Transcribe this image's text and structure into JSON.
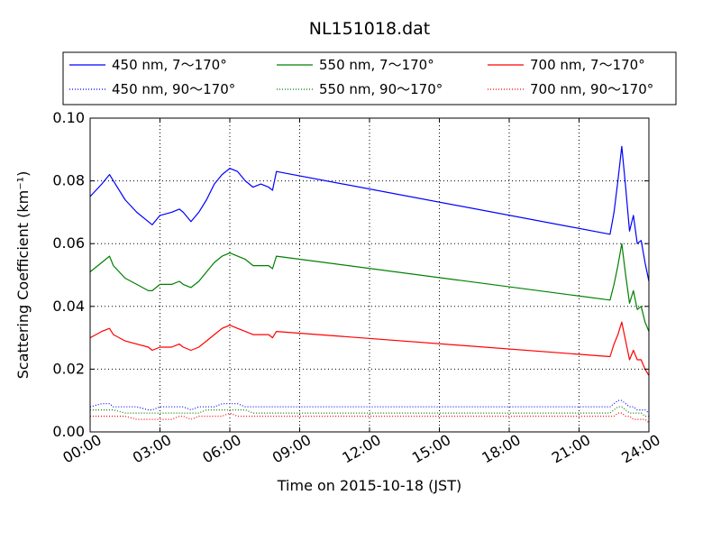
{
  "chart_data": {
    "type": "line",
    "title": "NL151018.dat",
    "xlabel": "Time on 2015-10-18 (JST)",
    "ylabel": "Scattering Coefficient (km⁻¹)",
    "xlim": [
      "00:00",
      "24:00"
    ],
    "ylim": [
      0.0,
      0.1
    ],
    "xticks": [
      "00:00",
      "03:00",
      "06:00",
      "09:00",
      "12:00",
      "15:00",
      "18:00",
      "21:00",
      "24:00"
    ],
    "yticks": [
      "0.00",
      "0.02",
      "0.04",
      "0.06",
      "0.08",
      "0.10"
    ],
    "grid": true,
    "legend": "top, above plot, 3 columns",
    "x": [
      "00:00",
      "00:30",
      "00:50",
      "01:00",
      "01:30",
      "02:00",
      "02:30",
      "02:40",
      "03:00",
      "03:30",
      "03:50",
      "04:00",
      "04:20",
      "04:40",
      "05:00",
      "05:20",
      "05:40",
      "06:00",
      "06:20",
      "06:40",
      "07:00",
      "07:20",
      "07:40",
      "07:50",
      "08:00",
      "22:20",
      "22:30",
      "22:40",
      "22:50",
      "23:00",
      "23:10",
      "23:20",
      "23:30",
      "23:40",
      "23:50",
      "24:00"
    ],
    "series": [
      {
        "name": "450 nm, 7～170°",
        "color": "#0000ff",
        "style": "solid",
        "values": [
          0.075,
          0.079,
          0.082,
          0.08,
          0.074,
          0.07,
          0.067,
          0.066,
          0.069,
          0.07,
          0.071,
          0.07,
          0.067,
          0.07,
          0.074,
          0.079,
          0.082,
          0.084,
          0.083,
          0.08,
          0.078,
          0.079,
          0.078,
          0.077,
          0.083,
          0.063,
          0.07,
          0.08,
          0.091,
          0.078,
          0.064,
          0.069,
          0.06,
          0.061,
          0.054,
          0.048
        ]
      },
      {
        "name": "550 nm, 7～170°",
        "color": "#008000",
        "style": "solid",
        "values": [
          0.051,
          0.054,
          0.056,
          0.053,
          0.049,
          0.047,
          0.045,
          0.045,
          0.047,
          0.047,
          0.048,
          0.047,
          0.046,
          0.048,
          0.051,
          0.054,
          0.056,
          0.057,
          0.056,
          0.055,
          0.053,
          0.053,
          0.053,
          0.052,
          0.056,
          0.042,
          0.047,
          0.053,
          0.06,
          0.05,
          0.041,
          0.045,
          0.039,
          0.04,
          0.035,
          0.032
        ]
      },
      {
        "name": "700 nm, 7～170°",
        "color": "#ff0000",
        "style": "solid",
        "values": [
          0.03,
          0.032,
          0.033,
          0.031,
          0.029,
          0.028,
          0.027,
          0.026,
          0.027,
          0.027,
          0.028,
          0.027,
          0.026,
          0.027,
          0.029,
          0.031,
          0.033,
          0.034,
          0.033,
          0.032,
          0.031,
          0.031,
          0.031,
          0.03,
          0.032,
          0.024,
          0.028,
          0.031,
          0.035,
          0.029,
          0.023,
          0.026,
          0.023,
          0.023,
          0.02,
          0.018
        ]
      },
      {
        "name": "450 nm, 90～170°",
        "color": "#0000ff",
        "style": "dotted",
        "values": [
          0.008,
          0.009,
          0.009,
          0.008,
          0.008,
          0.008,
          0.007,
          0.007,
          0.008,
          0.008,
          0.008,
          0.008,
          0.007,
          0.008,
          0.008,
          0.008,
          0.009,
          0.009,
          0.009,
          0.008,
          0.008,
          0.008,
          0.008,
          0.008,
          0.008,
          0.008,
          0.009,
          0.01,
          0.01,
          0.009,
          0.008,
          0.008,
          0.007,
          0.007,
          0.007,
          0.006
        ]
      },
      {
        "name": "550 nm, 90～170°",
        "color": "#008000",
        "style": "dotted",
        "values": [
          0.007,
          0.007,
          0.007,
          0.007,
          0.006,
          0.006,
          0.006,
          0.006,
          0.006,
          0.006,
          0.006,
          0.006,
          0.006,
          0.006,
          0.007,
          0.007,
          0.007,
          0.007,
          0.007,
          0.007,
          0.006,
          0.006,
          0.006,
          0.006,
          0.006,
          0.006,
          0.007,
          0.008,
          0.008,
          0.007,
          0.006,
          0.006,
          0.006,
          0.006,
          0.005,
          0.005
        ]
      },
      {
        "name": "700 nm, 90～170°",
        "color": "#ff0000",
        "style": "dotted",
        "values": [
          0.005,
          0.005,
          0.005,
          0.005,
          0.005,
          0.004,
          0.004,
          0.004,
          0.004,
          0.004,
          0.005,
          0.005,
          0.004,
          0.005,
          0.005,
          0.005,
          0.005,
          0.006,
          0.005,
          0.005,
          0.005,
          0.005,
          0.005,
          0.005,
          0.005,
          0.005,
          0.005,
          0.006,
          0.006,
          0.005,
          0.005,
          0.004,
          0.004,
          0.004,
          0.004,
          0.003
        ]
      }
    ]
  }
}
